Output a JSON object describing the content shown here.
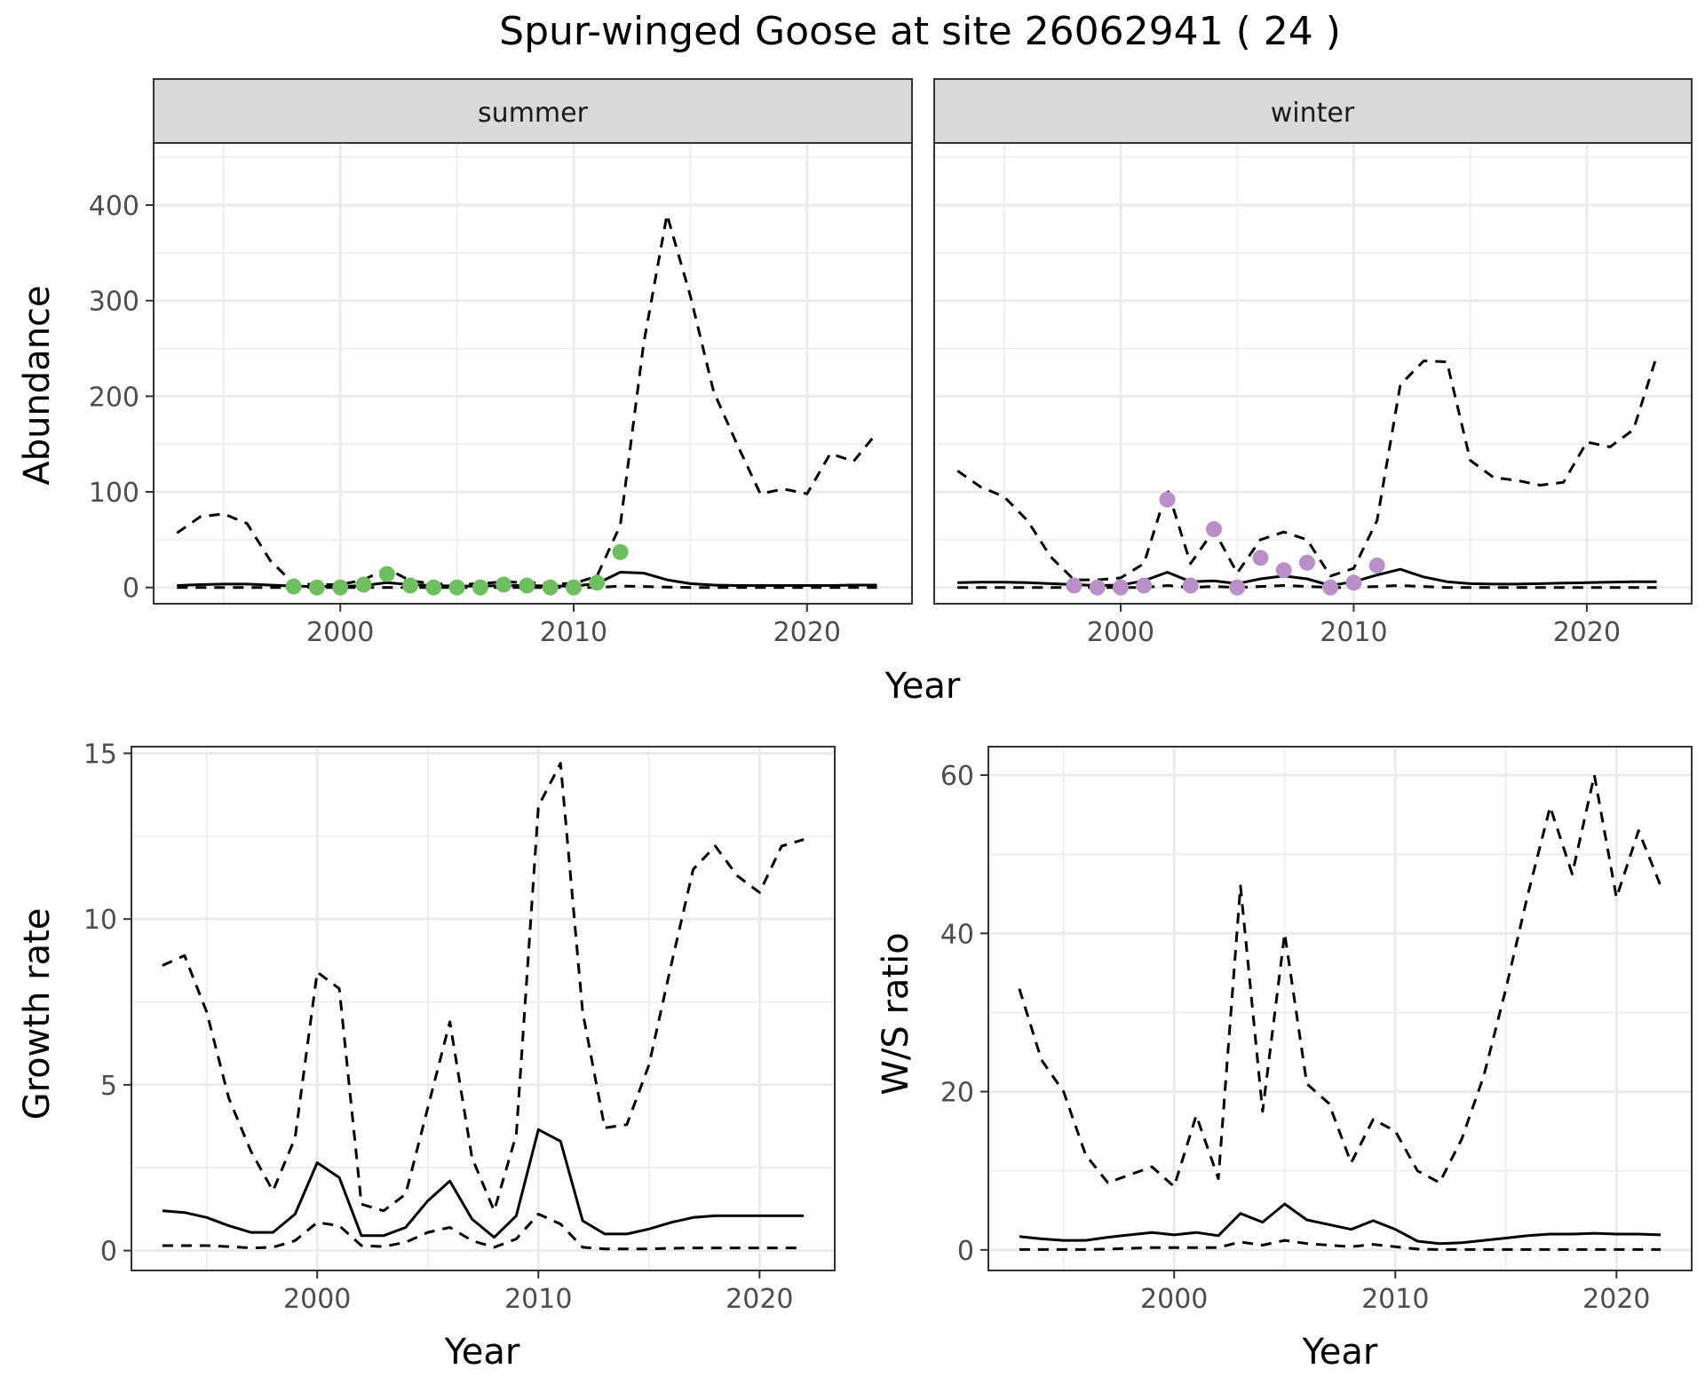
{
  "figure": {
    "title": "Spur-winged Goose at site 26062941 ( 24 )"
  },
  "colors": {
    "summer_points": "#6dbf5f",
    "winter_points": "#b98fc7",
    "line": "#000000",
    "grid": "#ebebeb",
    "strip_fill": "#d9d9d9"
  },
  "chart_data": [
    {
      "type": "line",
      "panel": "summer",
      "strip_label": "summer",
      "ylabel": "Abundance",
      "xlabel": "Year",
      "xlim": [
        1992,
        2024.5
      ],
      "ylim": [
        -17,
        465
      ],
      "xticks": [
        2000,
        2010,
        2020
      ],
      "yticks": [
        0,
        100,
        200,
        300,
        400
      ],
      "grid": true,
      "x": [
        1993,
        1994,
        1995,
        1996,
        1997,
        1998,
        1999,
        2000,
        2001,
        2002,
        2003,
        2004,
        2005,
        2006,
        2007,
        2008,
        2009,
        2010,
        2011,
        2012,
        2013,
        2014,
        2015,
        2016,
        2017,
        2018,
        2019,
        2020,
        2021,
        2022,
        2023
      ],
      "series": [
        {
          "role": "estimate",
          "style": "solid",
          "values": [
            2,
            3,
            3.5,
            3.5,
            2.5,
            1.5,
            1,
            1,
            2,
            5,
            3,
            2,
            1.5,
            1.5,
            2,
            2,
            1.5,
            1.5,
            4,
            16,
            15,
            8,
            4,
            2.5,
            2,
            2,
            2,
            2,
            2,
            2.5,
            2.5
          ]
        },
        {
          "role": "upper",
          "style": "dashed",
          "values": [
            57,
            74,
            77,
            67,
            28,
            4,
            3,
            3,
            8,
            20,
            7,
            4,
            3,
            4,
            6,
            5,
            4,
            4,
            12,
            65,
            255,
            390,
            305,
            205,
            150,
            98,
            103,
            98,
            140,
            132,
            162
          ]
        },
        {
          "role": "lower",
          "style": "dashed",
          "values": [
            0,
            0,
            0,
            0,
            0,
            0,
            0,
            0,
            0,
            0,
            0,
            0,
            0,
            0,
            0,
            0,
            0,
            0,
            0,
            1.5,
            1,
            0.5,
            0,
            0,
            0,
            0,
            0,
            0,
            0,
            0,
            0
          ]
        }
      ],
      "points": {
        "x": [
          1998,
          1999,
          2000,
          2001,
          2002,
          2003,
          2004,
          2005,
          2006,
          2007,
          2008,
          2009,
          2010,
          2011,
          2012
        ],
        "y": [
          1,
          0,
          0,
          3,
          14,
          2,
          0,
          0,
          0,
          3,
          2,
          0,
          0,
          5,
          37
        ]
      }
    },
    {
      "type": "line",
      "panel": "winter",
      "strip_label": "winter",
      "ylabel": "Abundance",
      "xlabel": "Year",
      "xlim": [
        1992,
        2024.5
      ],
      "ylim": [
        -17,
        465
      ],
      "xticks": [
        2000,
        2010,
        2020
      ],
      "yticks": [
        0,
        100,
        200,
        300,
        400
      ],
      "grid": true,
      "x": [
        1993,
        1994,
        1995,
        1996,
        1997,
        1998,
        1999,
        2000,
        2001,
        2002,
        2003,
        2004,
        2005,
        2006,
        2007,
        2008,
        2009,
        2010,
        2011,
        2012,
        2013,
        2014,
        2015,
        2016,
        2017,
        2018,
        2019,
        2020,
        2021,
        2022,
        2023
      ],
      "series": [
        {
          "role": "estimate",
          "style": "solid",
          "values": [
            5,
            5.5,
            5.5,
            5,
            4,
            3,
            2,
            2.5,
            7,
            16,
            6,
            7,
            4,
            9,
            12,
            9,
            2,
            6,
            13,
            19,
            11,
            6,
            4,
            3.5,
            3.5,
            4,
            4.5,
            5,
            5.5,
            6,
            6
          ]
        },
        {
          "role": "upper",
          "style": "dashed",
          "values": [
            122,
            105,
            95,
            70,
            32,
            8,
            8,
            10,
            25,
            103,
            25,
            60,
            15,
            50,
            58,
            50,
            12,
            20,
            70,
            212,
            237,
            236,
            133,
            115,
            112,
            107,
            110,
            152,
            147,
            165,
            242
          ]
        },
        {
          "role": "lower",
          "style": "dashed",
          "values": [
            0,
            0,
            0,
            0,
            0,
            0,
            0,
            0,
            0,
            2,
            0,
            1,
            0,
            1,
            2,
            1,
            0,
            0,
            1,
            2,
            1,
            0,
            0,
            0,
            0,
            0,
            0,
            0,
            0,
            0,
            0
          ]
        }
      ],
      "points": {
        "x": [
          1998,
          1999,
          2000,
          2001,
          2002,
          2003,
          2004,
          2005,
          2006,
          2007,
          2008,
          2009,
          2010,
          2011
        ],
        "y": [
          2,
          0,
          0,
          2,
          92,
          2,
          61,
          0,
          31,
          18,
          26,
          0,
          5,
          23
        ]
      }
    },
    {
      "type": "line",
      "panel": "growth",
      "ylabel": "Growth rate",
      "xlabel": "Year",
      "xlim": [
        1991.6,
        2023.4
      ],
      "ylim": [
        -0.6,
        15.2
      ],
      "xticks": [
        2000,
        2010,
        2020
      ],
      "yticks": [
        0,
        5,
        10,
        15
      ],
      "grid": true,
      "x": [
        1993,
        1994,
        1995,
        1996,
        1997,
        1998,
        1999,
        2000,
        2001,
        2002,
        2003,
        2004,
        2005,
        2006,
        2007,
        2008,
        2009,
        2010,
        2011,
        2012,
        2013,
        2014,
        2015,
        2016,
        2017,
        2018,
        2019,
        2020,
        2021,
        2022
      ],
      "series": [
        {
          "role": "estimate",
          "style": "solid",
          "values": [
            1.2,
            1.15,
            1.0,
            0.75,
            0.55,
            0.55,
            1.1,
            2.65,
            2.2,
            0.45,
            0.45,
            0.7,
            1.5,
            2.1,
            0.95,
            0.4,
            1.05,
            3.65,
            3.3,
            0.9,
            0.5,
            0.5,
            0.65,
            0.85,
            1.0,
            1.05,
            1.05,
            1.05,
            1.05,
            1.05
          ]
        },
        {
          "role": "upper",
          "style": "dashed",
          "values": [
            8.6,
            8.9,
            7.2,
            4.6,
            3.0,
            1.8,
            3.4,
            8.4,
            7.9,
            1.4,
            1.2,
            1.7,
            4.3,
            6.9,
            2.8,
            1.2,
            3.5,
            13.4,
            14.7,
            7.2,
            3.7,
            3.8,
            5.6,
            8.6,
            11.5,
            12.2,
            11.3,
            10.8,
            12.2,
            12.4
          ]
        },
        {
          "role": "lower",
          "style": "dashed",
          "values": [
            0.15,
            0.15,
            0.15,
            0.12,
            0.08,
            0.1,
            0.3,
            0.85,
            0.75,
            0.15,
            0.12,
            0.25,
            0.55,
            0.7,
            0.3,
            0.1,
            0.35,
            1.1,
            0.8,
            0.1,
            0.05,
            0.05,
            0.05,
            0.07,
            0.08,
            0.08,
            0.08,
            0.08,
            0.08,
            0.08
          ]
        }
      ]
    },
    {
      "type": "line",
      "panel": "ws_ratio",
      "ylabel": "W/S ratio",
      "xlabel": "Year",
      "xlim": [
        1991.6,
        2023.4
      ],
      "ylim": [
        -2.6,
        63.6
      ],
      "xticks": [
        2000,
        2010,
        2020
      ],
      "yticks": [
        0,
        20,
        40,
        60
      ],
      "grid": true,
      "x": [
        1993,
        1994,
        1995,
        1996,
        1997,
        1998,
        1999,
        2000,
        2001,
        2002,
        2003,
        2004,
        2005,
        2006,
        2007,
        2008,
        2009,
        2010,
        2011,
        2012,
        2013,
        2014,
        2015,
        2016,
        2017,
        2018,
        2019,
        2020,
        2021,
        2022
      ],
      "series": [
        {
          "role": "estimate",
          "style": "solid",
          "values": [
            1.7,
            1.4,
            1.2,
            1.2,
            1.6,
            1.9,
            2.2,
            1.9,
            2.2,
            1.8,
            4.6,
            3.5,
            5.8,
            3.8,
            3.2,
            2.6,
            3.7,
            2.6,
            1.1,
            0.8,
            0.9,
            1.2,
            1.5,
            1.8,
            2.0,
            2.0,
            2.1,
            2.0,
            2.0,
            1.9
          ]
        },
        {
          "role": "upper",
          "style": "dashed",
          "values": [
            33,
            24,
            20,
            12,
            8.5,
            9.5,
            10.5,
            8,
            17,
            9,
            46,
            17.5,
            40,
            21,
            18.5,
            11,
            16.5,
            15,
            10,
            8.5,
            14,
            22,
            33,
            45,
            56,
            47.5,
            60,
            44.5,
            53,
            46
          ]
        },
        {
          "role": "lower",
          "style": "dashed",
          "values": [
            0.05,
            0.05,
            0.05,
            0.05,
            0.1,
            0.2,
            0.3,
            0.3,
            0.3,
            0.3,
            1.0,
            0.6,
            1.2,
            0.8,
            0.6,
            0.4,
            0.7,
            0.4,
            0.1,
            0.05,
            0.05,
            0.05,
            0.05,
            0.05,
            0.05,
            0.05,
            0.05,
            0.05,
            0.05,
            0.05
          ]
        }
      ]
    }
  ]
}
